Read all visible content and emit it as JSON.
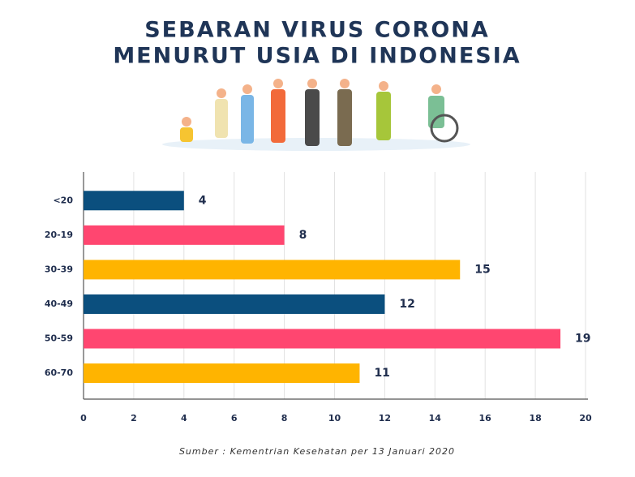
{
  "chart_data": {
    "type": "bar",
    "orientation": "horizontal",
    "title": [
      "SEBARAN VIRUS CORONA",
      "MENURUT USIA DI INDONESIA"
    ],
    "categories": [
      "<20",
      "20-19",
      "30-39",
      "40-49",
      "50-59",
      "60-70"
    ],
    "values": [
      4,
      8,
      15,
      12,
      19,
      11
    ],
    "colors": [
      "#0b4f7e",
      "#ff4670",
      "#ffb400",
      "#0b4f7e",
      "#ff4670",
      "#ffb400"
    ],
    "xlim": [
      0,
      20
    ],
    "xticks": [
      0,
      2,
      4,
      6,
      8,
      10,
      12,
      14,
      16,
      18,
      20
    ],
    "grid": true,
    "source": "Sumber : Kementrian Kesehatan per 13 Januari 2020"
  }
}
